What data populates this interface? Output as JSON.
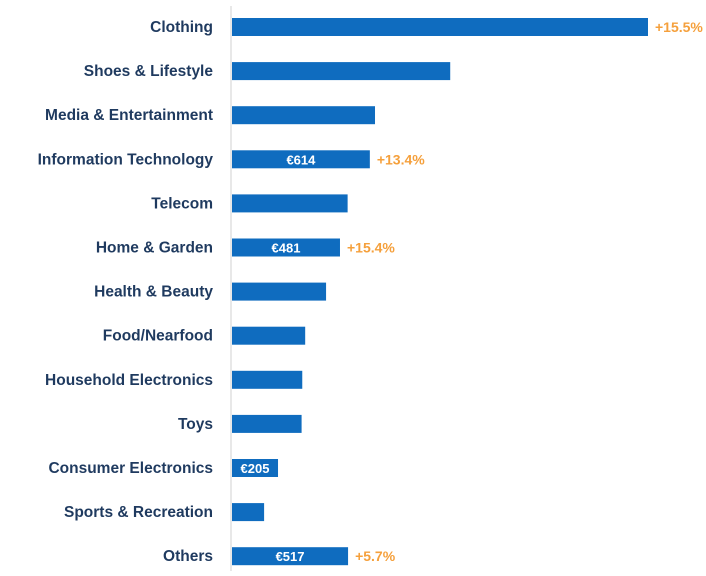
{
  "chart_data": {
    "type": "bar",
    "orientation": "horizontal",
    "categories": [
      "Clothing",
      "Shoes & Lifestyle",
      "Media & Entertainment",
      "Information Technology",
      "Telecom",
      "Home & Garden",
      "Health & Beauty",
      "Food/Nearfood",
      "Household Electronics",
      "Toys",
      "Consumer Electronics",
      "Sports & Recreation",
      "Others"
    ],
    "values": [
      1853,
      972,
      637,
      614,
      515,
      481,
      419,
      326,
      313,
      310,
      205,
      143,
      517
    ],
    "value_labels": [
      "",
      "",
      "",
      "€614",
      "",
      "€481",
      "",
      "",
      "",
      "",
      "€205",
      "",
      "€517"
    ],
    "growth_labels": [
      "+15.5%",
      "",
      "",
      "+13.4%",
      "",
      "+15.4%",
      "",
      "",
      "",
      "",
      "",
      "",
      "+5.7%"
    ],
    "colors": {
      "bar": "#0f6cbf",
      "growth": "#f5a03c",
      "category_label": "#1f3a5f",
      "value_label": "#ffffff",
      "axis": "#d0d0d0"
    },
    "title": "",
    "xlabel": "",
    "ylabel": "",
    "grid": false,
    "legend": "none"
  }
}
